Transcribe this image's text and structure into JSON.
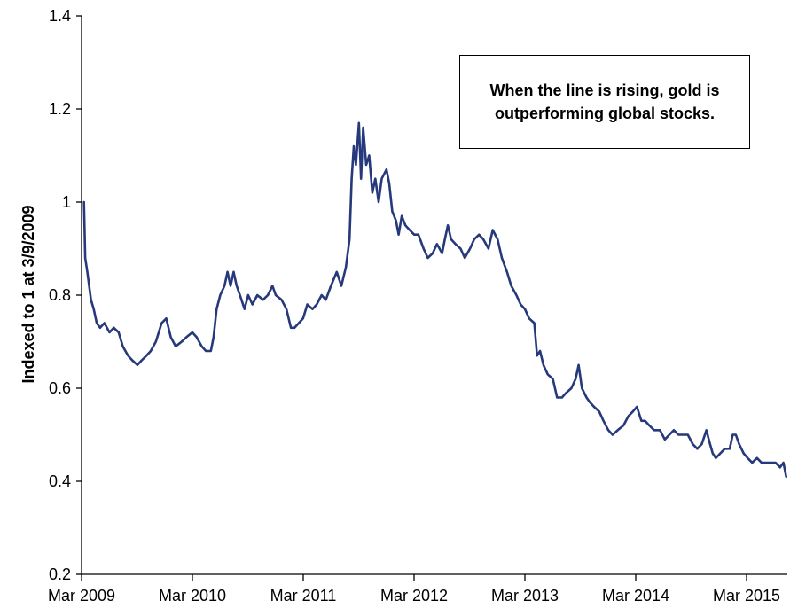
{
  "chart_data": {
    "type": "line",
    "title": "",
    "xlabel": "",
    "ylabel": "Indexed to 1 at 3/9/2009",
    "ylim": [
      0.2,
      1.4
    ],
    "yticks": [
      "0.2",
      "0.4",
      "0.6",
      "0.8",
      "1",
      "1.2",
      "1.4"
    ],
    "xlim": [
      "2009-03",
      "2015-07"
    ],
    "xticks": [
      "Mar 2009",
      "Mar 2010",
      "Mar 2011",
      "Mar 2012",
      "Mar 2013",
      "Mar 2014",
      "Mar 2015"
    ],
    "grid": false,
    "legend": "none",
    "annotation": "When the line is rising, gold is outperforming global stocks.",
    "colors": {
      "line": "#26397a",
      "axis": "#000000"
    },
    "series": [
      {
        "values": [
          [
            "2009-03-09",
            1.0
          ],
          [
            "2009-03-13",
            0.88
          ],
          [
            "2009-03-20",
            0.85
          ],
          [
            "2009-04-01",
            0.79
          ],
          [
            "2009-04-10",
            0.77
          ],
          [
            "2009-04-20",
            0.74
          ],
          [
            "2009-05-01",
            0.73
          ],
          [
            "2009-05-15",
            0.74
          ],
          [
            "2009-06-01",
            0.72
          ],
          [
            "2009-06-15",
            0.73
          ],
          [
            "2009-07-01",
            0.72
          ],
          [
            "2009-07-15",
            0.69
          ],
          [
            "2009-08-01",
            0.67
          ],
          [
            "2009-08-15",
            0.66
          ],
          [
            "2009-09-01",
            0.65
          ],
          [
            "2009-09-15",
            0.66
          ],
          [
            "2009-10-01",
            0.67
          ],
          [
            "2009-10-15",
            0.68
          ],
          [
            "2009-11-01",
            0.7
          ],
          [
            "2009-11-20",
            0.74
          ],
          [
            "2009-12-05",
            0.75
          ],
          [
            "2009-12-20",
            0.71
          ],
          [
            "2010-01-05",
            0.69
          ],
          [
            "2010-01-25",
            0.7
          ],
          [
            "2010-02-10",
            0.71
          ],
          [
            "2010-03-01",
            0.72
          ],
          [
            "2010-03-15",
            0.71
          ],
          [
            "2010-04-01",
            0.69
          ],
          [
            "2010-04-15",
            0.68
          ],
          [
            "2010-05-01",
            0.68
          ],
          [
            "2010-05-10",
            0.71
          ],
          [
            "2010-05-20",
            0.77
          ],
          [
            "2010-06-01",
            0.8
          ],
          [
            "2010-06-15",
            0.82
          ],
          [
            "2010-06-25",
            0.85
          ],
          [
            "2010-07-05",
            0.82
          ],
          [
            "2010-07-15",
            0.85
          ],
          [
            "2010-07-25",
            0.82
          ],
          [
            "2010-08-05",
            0.8
          ],
          [
            "2010-08-20",
            0.77
          ],
          [
            "2010-09-01",
            0.8
          ],
          [
            "2010-09-15",
            0.78
          ],
          [
            "2010-10-01",
            0.8
          ],
          [
            "2010-10-20",
            0.79
          ],
          [
            "2010-11-05",
            0.8
          ],
          [
            "2010-11-20",
            0.82
          ],
          [
            "2010-12-01",
            0.8
          ],
          [
            "2010-12-20",
            0.79
          ],
          [
            "2011-01-05",
            0.77
          ],
          [
            "2011-01-20",
            0.73
          ],
          [
            "2011-02-01",
            0.73
          ],
          [
            "2011-02-15",
            0.74
          ],
          [
            "2011-03-01",
            0.75
          ],
          [
            "2011-03-15",
            0.78
          ],
          [
            "2011-04-01",
            0.77
          ],
          [
            "2011-04-15",
            0.78
          ],
          [
            "2011-05-01",
            0.8
          ],
          [
            "2011-05-15",
            0.79
          ],
          [
            "2011-06-01",
            0.82
          ],
          [
            "2011-06-20",
            0.85
          ],
          [
            "2011-07-05",
            0.82
          ],
          [
            "2011-07-20",
            0.86
          ],
          [
            "2011-08-01",
            0.92
          ],
          [
            "2011-08-08",
            1.05
          ],
          [
            "2011-08-15",
            1.12
          ],
          [
            "2011-08-22",
            1.08
          ],
          [
            "2011-09-01",
            1.17
          ],
          [
            "2011-09-08",
            1.05
          ],
          [
            "2011-09-15",
            1.16
          ],
          [
            "2011-09-25",
            1.08
          ],
          [
            "2011-10-05",
            1.1
          ],
          [
            "2011-10-15",
            1.02
          ],
          [
            "2011-10-25",
            1.05
          ],
          [
            "2011-11-05",
            1.0
          ],
          [
            "2011-11-15",
            1.05
          ],
          [
            "2011-12-01",
            1.07
          ],
          [
            "2011-12-10",
            1.04
          ],
          [
            "2011-12-20",
            0.98
          ],
          [
            "2012-01-01",
            0.96
          ],
          [
            "2012-01-10",
            0.93
          ],
          [
            "2012-01-20",
            0.97
          ],
          [
            "2012-02-01",
            0.95
          ],
          [
            "2012-02-15",
            0.94
          ],
          [
            "2012-03-01",
            0.93
          ],
          [
            "2012-03-15",
            0.93
          ],
          [
            "2012-04-01",
            0.9
          ],
          [
            "2012-04-15",
            0.88
          ],
          [
            "2012-05-01",
            0.89
          ],
          [
            "2012-05-15",
            0.91
          ],
          [
            "2012-06-01",
            0.89
          ],
          [
            "2012-06-10",
            0.92
          ],
          [
            "2012-06-20",
            0.95
          ],
          [
            "2012-07-01",
            0.92
          ],
          [
            "2012-07-15",
            0.91
          ],
          [
            "2012-08-01",
            0.9
          ],
          [
            "2012-08-15",
            0.88
          ],
          [
            "2012-09-01",
            0.9
          ],
          [
            "2012-09-15",
            0.92
          ],
          [
            "2012-10-01",
            0.93
          ],
          [
            "2012-10-15",
            0.92
          ],
          [
            "2012-11-01",
            0.9
          ],
          [
            "2012-11-15",
            0.94
          ],
          [
            "2012-12-01",
            0.92
          ],
          [
            "2012-12-15",
            0.88
          ],
          [
            "2013-01-01",
            0.85
          ],
          [
            "2013-01-15",
            0.82
          ],
          [
            "2013-02-01",
            0.8
          ],
          [
            "2013-02-15",
            0.78
          ],
          [
            "2013-03-01",
            0.77
          ],
          [
            "2013-03-15",
            0.75
          ],
          [
            "2013-04-01",
            0.74
          ],
          [
            "2013-04-10",
            0.67
          ],
          [
            "2013-04-20",
            0.68
          ],
          [
            "2013-05-01",
            0.65
          ],
          [
            "2013-05-15",
            0.63
          ],
          [
            "2013-06-01",
            0.62
          ],
          [
            "2013-06-15",
            0.58
          ],
          [
            "2013-07-01",
            0.58
          ],
          [
            "2013-07-15",
            0.59
          ],
          [
            "2013-08-01",
            0.6
          ],
          [
            "2013-08-15",
            0.62
          ],
          [
            "2013-08-25",
            0.65
          ],
          [
            "2013-09-05",
            0.6
          ],
          [
            "2013-09-20",
            0.58
          ],
          [
            "2013-10-01",
            0.57
          ],
          [
            "2013-10-15",
            0.56
          ],
          [
            "2013-11-01",
            0.55
          ],
          [
            "2013-11-15",
            0.53
          ],
          [
            "2013-12-01",
            0.51
          ],
          [
            "2013-12-15",
            0.5
          ],
          [
            "2014-01-01",
            0.51
          ],
          [
            "2014-01-20",
            0.52
          ],
          [
            "2014-02-05",
            0.54
          ],
          [
            "2014-02-20",
            0.55
          ],
          [
            "2014-03-05",
            0.56
          ],
          [
            "2014-03-20",
            0.53
          ],
          [
            "2014-04-01",
            0.53
          ],
          [
            "2014-04-15",
            0.52
          ],
          [
            "2014-05-01",
            0.51
          ],
          [
            "2014-05-20",
            0.51
          ],
          [
            "2014-06-05",
            0.49
          ],
          [
            "2014-06-20",
            0.5
          ],
          [
            "2014-07-05",
            0.51
          ],
          [
            "2014-07-20",
            0.5
          ],
          [
            "2014-08-05",
            0.5
          ],
          [
            "2014-08-20",
            0.5
          ],
          [
            "2014-09-05",
            0.48
          ],
          [
            "2014-09-20",
            0.47
          ],
          [
            "2014-10-05",
            0.48
          ],
          [
            "2014-10-20",
            0.51
          ],
          [
            "2014-11-01",
            0.48
          ],
          [
            "2014-11-10",
            0.46
          ],
          [
            "2014-11-20",
            0.45
          ],
          [
            "2014-12-05",
            0.46
          ],
          [
            "2014-12-20",
            0.47
          ],
          [
            "2015-01-05",
            0.47
          ],
          [
            "2015-01-15",
            0.5
          ],
          [
            "2015-01-25",
            0.5
          ],
          [
            "2015-02-05",
            0.48
          ],
          [
            "2015-02-20",
            0.46
          ],
          [
            "2015-03-05",
            0.45
          ],
          [
            "2015-03-20",
            0.44
          ],
          [
            "2015-04-05",
            0.45
          ],
          [
            "2015-04-20",
            0.44
          ],
          [
            "2015-05-05",
            0.44
          ],
          [
            "2015-05-20",
            0.44
          ],
          [
            "2015-06-05",
            0.44
          ],
          [
            "2015-06-20",
            0.43
          ],
          [
            "2015-07-01",
            0.44
          ],
          [
            "2015-07-10",
            0.41
          ]
        ]
      }
    ]
  }
}
